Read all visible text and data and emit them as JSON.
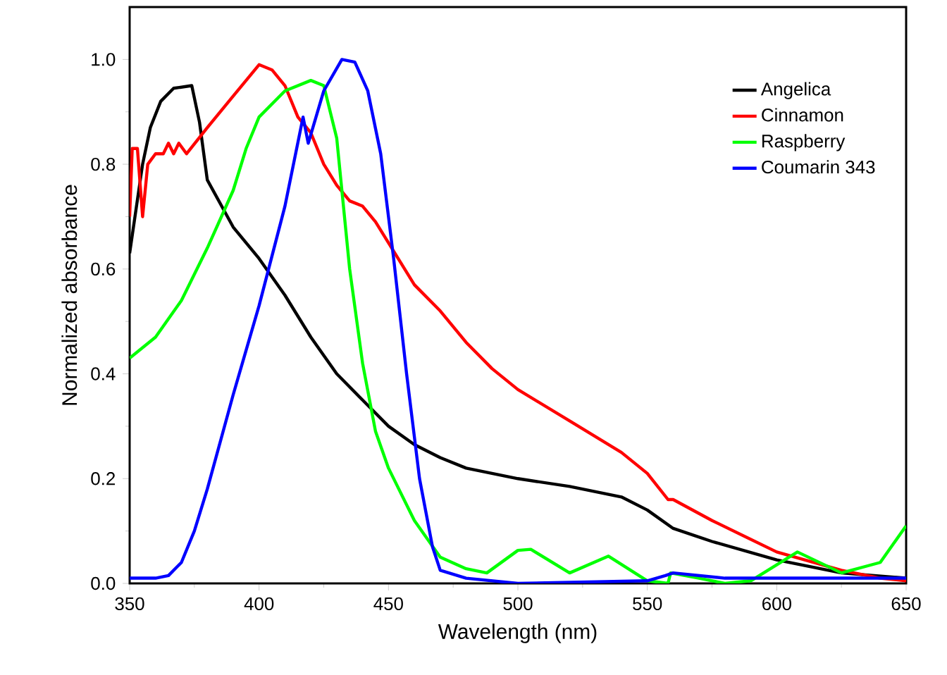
{
  "chart_data": {
    "type": "line",
    "xlabel": "Wavelength (nm)",
    "ylabel": "Normalized absorbance",
    "xlim": [
      350,
      650
    ],
    "ylim": [
      0,
      1.1
    ],
    "xticks": [
      350,
      400,
      450,
      500,
      550,
      600,
      650
    ],
    "yticks": [
      {
        "value": 0,
        "label": "0.0"
      },
      {
        "value": 0.2,
        "label": "0.2"
      },
      {
        "value": 0.4,
        "label": "0.4"
      },
      {
        "value": 0.6,
        "label": "0.6"
      },
      {
        "value": 0.8,
        "label": "0.8"
      },
      {
        "value": 1.0,
        "label": "1.0"
      }
    ],
    "grid": false,
    "legend": "top right",
    "marker": "none",
    "line_style": "solid",
    "series": [
      {
        "name": "Angelica",
        "color": "#000000",
        "x": [
          350,
          355,
          358,
          362,
          367,
          374,
          377,
          380,
          390,
          400,
          410,
          420,
          430,
          440,
          450,
          460,
          470,
          480,
          500,
          520,
          540,
          550,
          560,
          575,
          600,
          625,
          650
        ],
        "values": [
          0.63,
          0.8,
          0.87,
          0.92,
          0.945,
          0.95,
          0.88,
          0.77,
          0.68,
          0.62,
          0.55,
          0.47,
          0.4,
          0.35,
          0.3,
          0.265,
          0.24,
          0.22,
          0.2,
          0.185,
          0.165,
          0.14,
          0.105,
          0.08,
          0.045,
          0.02,
          0.01
        ]
      },
      {
        "name": "Cinnamon",
        "color": "#ff0000",
        "x": [
          350,
          351,
          353,
          355,
          357,
          360,
          363,
          365,
          367,
          369,
          372,
          380,
          390,
          400,
          405,
          410,
          415,
          420,
          425,
          430,
          435,
          440,
          445,
          450,
          460,
          470,
          480,
          490,
          500,
          520,
          540,
          550,
          558,
          560,
          575,
          600,
          625,
          640,
          650
        ],
        "values": [
          0.7,
          0.83,
          0.83,
          0.7,
          0.8,
          0.82,
          0.82,
          0.84,
          0.82,
          0.84,
          0.82,
          0.87,
          0.93,
          0.99,
          0.98,
          0.95,
          0.89,
          0.86,
          0.8,
          0.76,
          0.73,
          0.72,
          0.69,
          0.65,
          0.57,
          0.52,
          0.46,
          0.41,
          0.37,
          0.31,
          0.25,
          0.21,
          0.16,
          0.16,
          0.12,
          0.06,
          0.025,
          0.01,
          0.005
        ]
      },
      {
        "name": "Raspberry",
        "color": "#00ff00",
        "x": [
          350,
          360,
          370,
          380,
          390,
          395,
          400,
          410,
          420,
          425,
          430,
          435,
          440,
          445,
          450,
          460,
          470,
          480,
          488,
          500,
          505,
          520,
          535,
          550,
          558,
          559,
          570,
          580,
          590,
          608,
          625,
          640,
          650
        ],
        "values": [
          0.43,
          0.47,
          0.54,
          0.64,
          0.75,
          0.83,
          0.89,
          0.94,
          0.96,
          0.95,
          0.85,
          0.6,
          0.42,
          0.29,
          0.22,
          0.12,
          0.05,
          0.028,
          0.02,
          0.063,
          0.065,
          0.02,
          0.052,
          0.005,
          0.0,
          0.02,
          0.01,
          0.0,
          0.005,
          0.06,
          0.02,
          0.04,
          0.11
        ]
      },
      {
        "name": "Coumarin 343",
        "color": "#0000ff",
        "x": [
          350,
          360,
          365,
          370,
          375,
          380,
          390,
          400,
          410,
          417,
          419,
          425,
          432,
          437,
          442,
          447,
          452,
          457,
          462,
          467,
          470,
          480,
          500,
          550,
          557,
          560,
          580,
          600,
          630,
          650
        ],
        "values": [
          0.01,
          0.01,
          0.015,
          0.04,
          0.1,
          0.18,
          0.36,
          0.53,
          0.72,
          0.89,
          0.84,
          0.94,
          1.0,
          0.995,
          0.94,
          0.82,
          0.62,
          0.4,
          0.2,
          0.07,
          0.025,
          0.01,
          0.0,
          0.005,
          0.015,
          0.02,
          0.01,
          0.01,
          0.01,
          0.01
        ]
      }
    ]
  }
}
